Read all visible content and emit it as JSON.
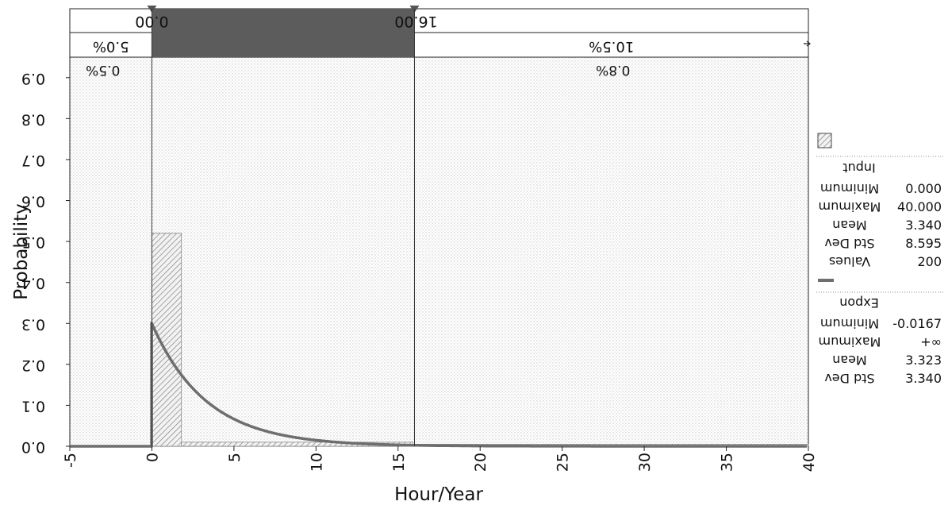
{
  "chart_data": {
    "type": "histogram",
    "xlabel": "Hour/Year",
    "ylabel": "Probability",
    "xlim": [
      -5,
      40
    ],
    "ylim": [
      0.0,
      0.95
    ],
    "x_ticks": [
      "-5",
      "0",
      "5",
      "10",
      "15",
      "20",
      "25",
      "30",
      "35",
      "40"
    ],
    "y_ticks": [
      "0.0",
      "0.1",
      "0.2",
      "0.3",
      "0.4",
      "0.5",
      "0.6",
      "0.7",
      "0.8",
      "0.9"
    ],
    "delimiters": {
      "left_value": "0.00",
      "right_value": "16.00",
      "left": 0.0,
      "right": 16.0
    },
    "bands": {
      "input_row": {
        "left_pct": "5.0%",
        "middle_pct": "",
        "right_pct": "10.5%"
      },
      "fit_row": {
        "left_pct": "0.5%",
        "right_pct": "0.8%"
      }
    },
    "histogram": {
      "name": "Input",
      "bins": [
        {
          "x0": 0.0,
          "x1": 1.8,
          "p": 0.52
        },
        {
          "x0": 1.8,
          "x1": 15.9,
          "p": 0.01
        },
        {
          "x0": 15.9,
          "x1": 40.0,
          "p": 0.005
        }
      ]
    },
    "fit": {
      "name": "Expon",
      "shift": -0.0167,
      "mean": 3.323
    },
    "stats": {
      "input": {
        "title": "Input",
        "rows": [
          {
            "label": "Minimum",
            "value": "0.000"
          },
          {
            "label": "Maximum",
            "value": "40.000"
          },
          {
            "label": "Mean",
            "value": "3.340"
          },
          {
            "label": "Std Dev",
            "value": "8.595"
          },
          {
            "label": "Values",
            "value": "200"
          }
        ]
      },
      "fit": {
        "title": "Expon",
        "rows": [
          {
            "label": "Minimum",
            "value": "-0.0167"
          },
          {
            "label": "Maximum",
            "value": "+∞"
          },
          {
            "label": "Mean",
            "value": "3.323"
          },
          {
            "label": "Std Dev",
            "value": "3.340"
          }
        ]
      }
    },
    "colors": {
      "fit_line": "#6e6e6e",
      "band": "#5a5a5a",
      "hatch": "#777777",
      "dots": "#c8c8c8"
    },
    "grid": false,
    "legend": "right"
  }
}
